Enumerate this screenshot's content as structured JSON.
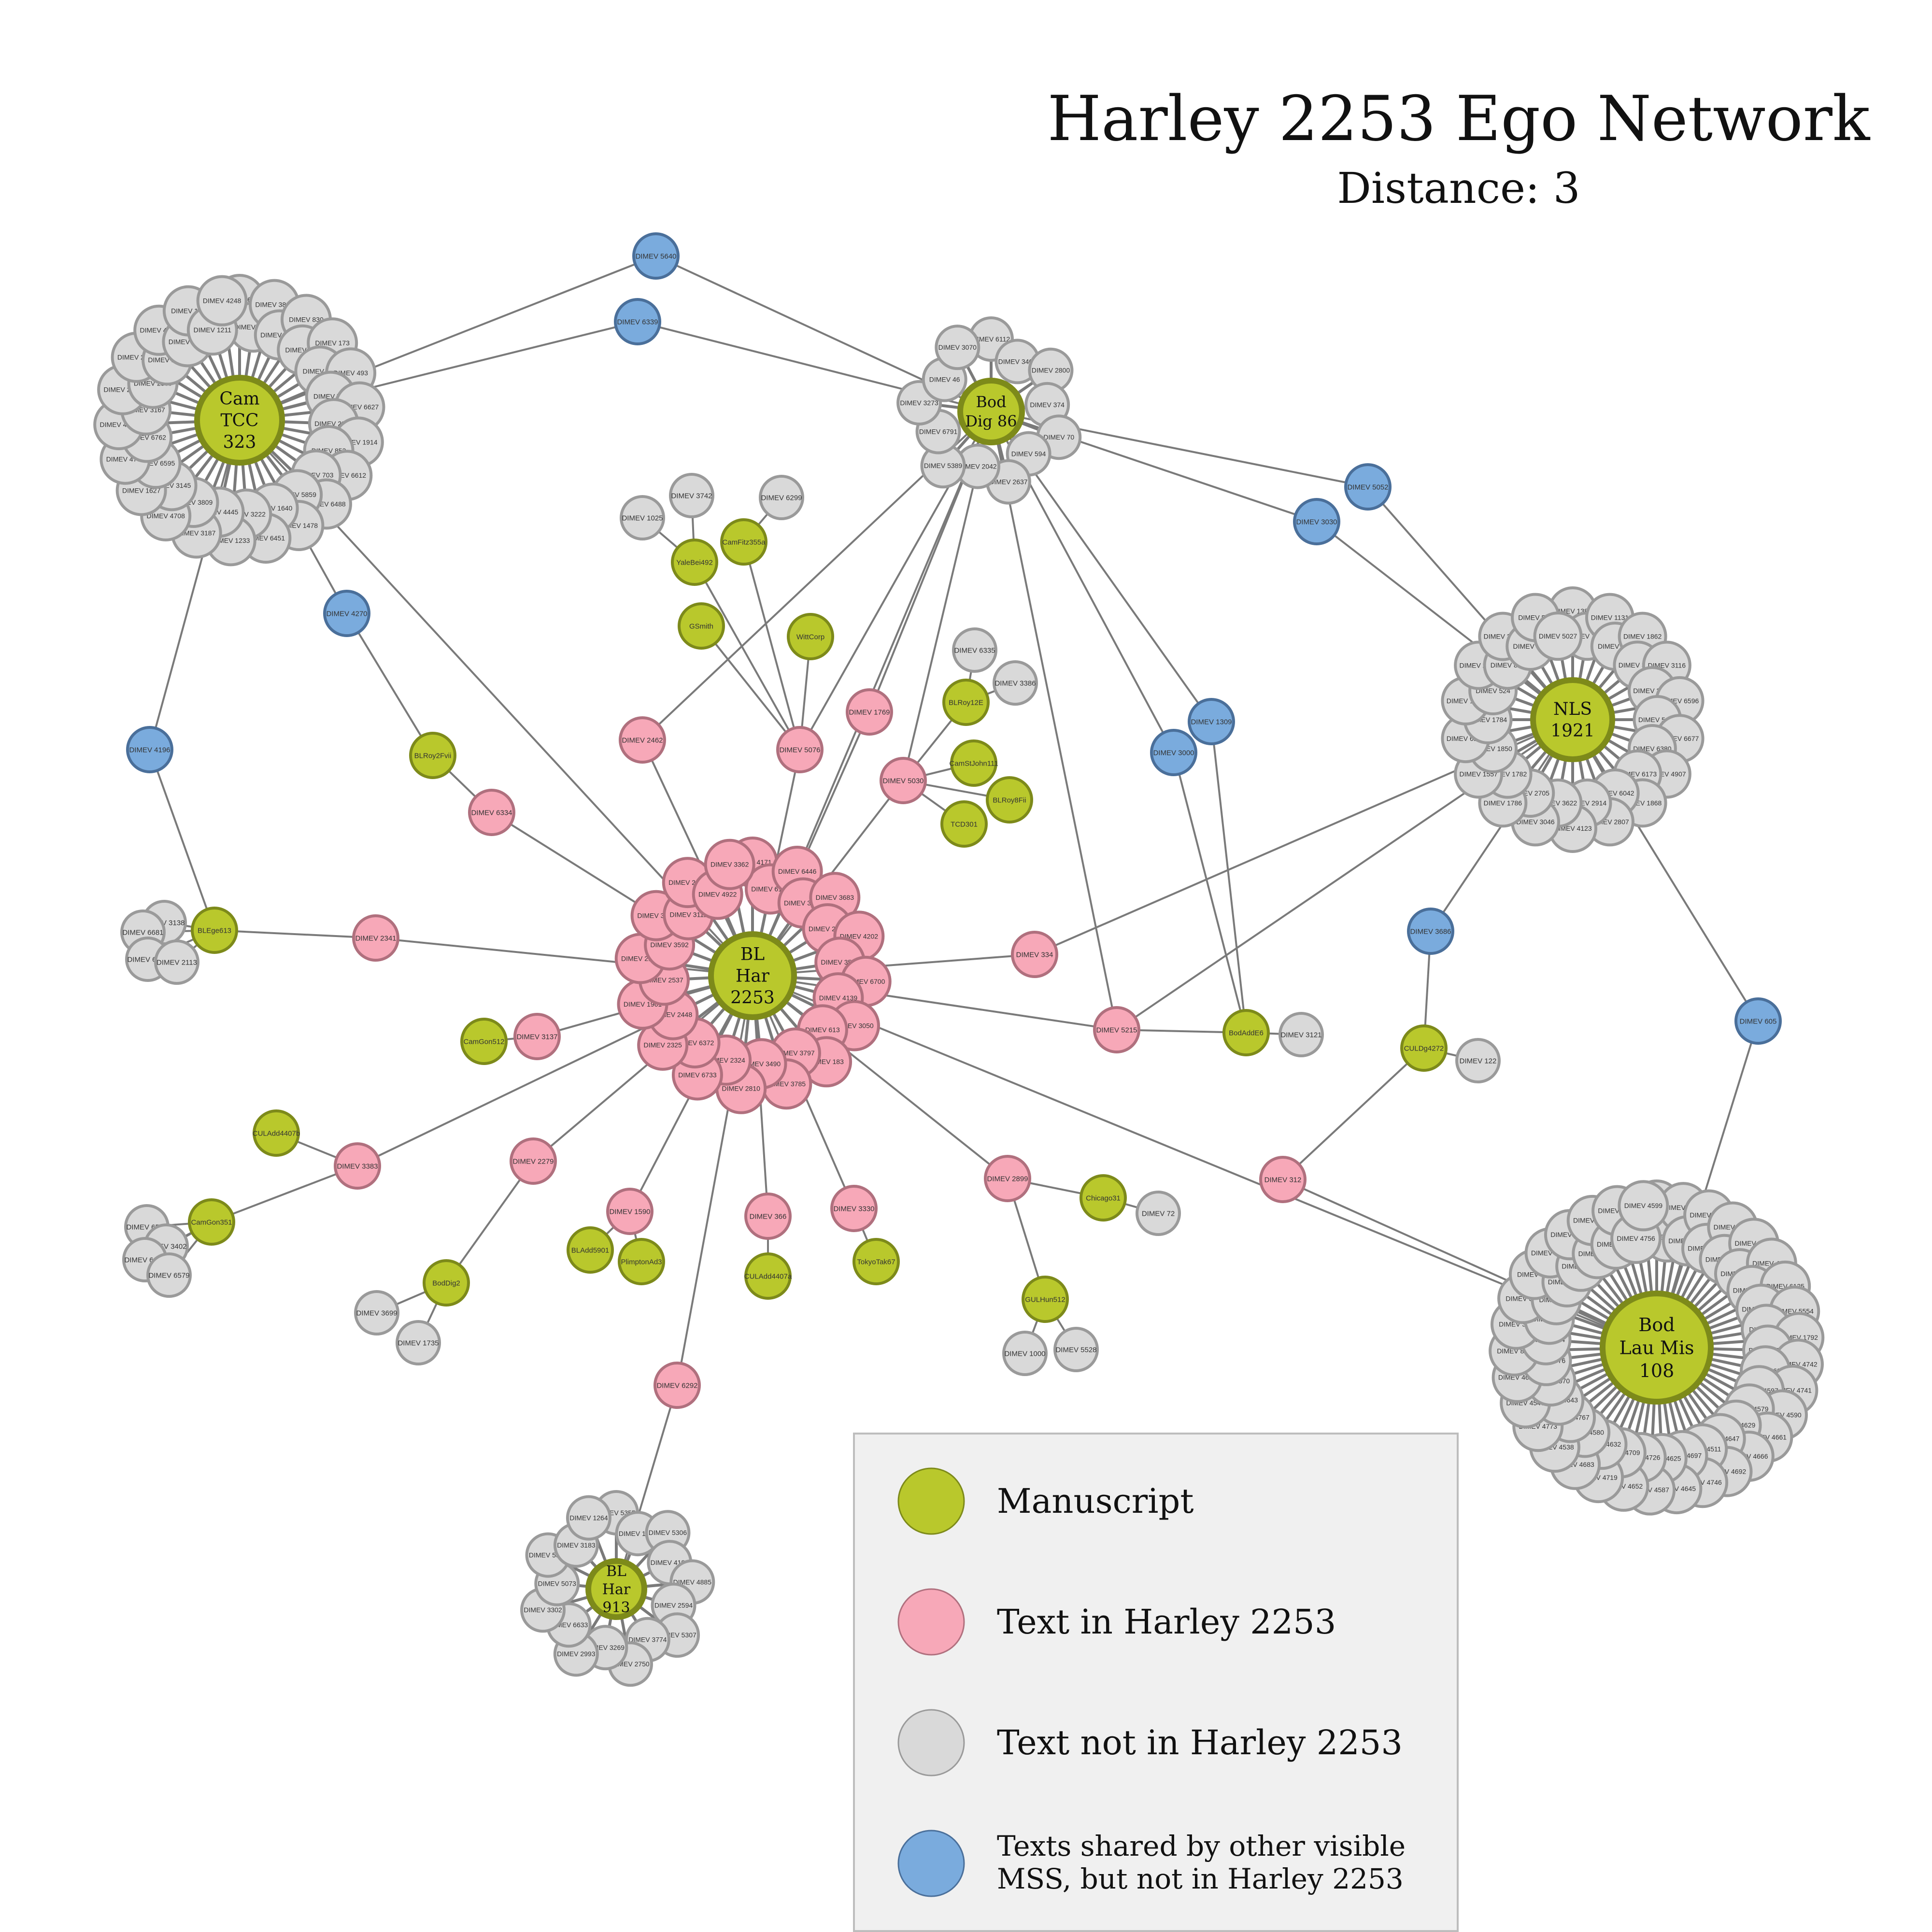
{
  "title": "Harley 2253 Ego Network",
  "subtitle": "Distance: 3",
  "colors": {
    "manuscript": "#b9c82c",
    "manuscript_stroke": "#7d8a1a",
    "in_harley": "#f7a8b8",
    "in_harley_stroke": "#b0707e",
    "not_in_harley": "#d9d9d9",
    "not_in_harley_stroke": "#9a9a9a",
    "shared": "#7aabdd",
    "shared_stroke": "#4a6f9a",
    "edge": "#7a7a7a"
  },
  "legend": {
    "items": [
      {
        "type": "manuscript",
        "label": "Manuscript"
      },
      {
        "type": "in_harley",
        "label": "Text in Harley 2253"
      },
      {
        "type": "not_in_harley",
        "label": "Text not in Harley 2253"
      },
      {
        "type": "shared",
        "label": "Texts shared by other visible",
        "label2": "MSS, but not in Harley 2253"
      }
    ]
  },
  "hubs": [
    {
      "id": "har2253",
      "label": [
        "BL",
        "Har",
        "2253"
      ],
      "ring_type": "in_harley",
      "ring": [
        "DIMEV 4171",
        "DIMEV 6195",
        "DIMEV 6446",
        "DIMEV 3227",
        "DIMEV 3683",
        "DIMEV 2025",
        "DIMEV 4202",
        "DIMEV 3550",
        "DIMEV 6700",
        "DIMEV 4139",
        "DIMEV 3050",
        "DIMEV 613",
        "DIMEV 183",
        "DIMEV 3797",
        "DIMEV 3785",
        "DIMEV 3490",
        "DIMEV 2810",
        "DIMEV 2324",
        "DIMEV 6733",
        "DIMEV 6372",
        "DIMEV 2325",
        "DIMEV 2448",
        "DIMEV 1961",
        "DIMEV 2537",
        "DIMEV 2199",
        "DIMEV 3592",
        "DIMEV 3115",
        "DIMEV 3111",
        "DIMEV 2842",
        "DIMEV 4922",
        "DIMEV 3362"
      ]
    },
    {
      "id": "camtcc",
      "label": [
        "Cam",
        "TCC",
        "323"
      ],
      "ring_type": "not_in_harley",
      "ring": [
        "DIMEV 6686",
        "DIMEV 3023",
        "DIMEV 3808",
        "DIMEV 4359",
        "DIMEV 830",
        "DIMEV 198",
        "DIMEV 173",
        "DIMEV 784",
        "DIMEV 493",
        "DIMEV 714",
        "DIMEV 6627",
        "DIMEV 2315",
        "DIMEV 1914",
        "DIMEV 852",
        "DIMEV 6612",
        "DIMEV 703",
        "DIMEV 6488",
        "DIMEV 5859",
        "DIMEV 1478",
        "DIMEV 1640",
        "DIMEV 6451",
        "DIMEV 3222",
        "DIMEV 1233",
        "DIMEV 4445",
        "DIMEV 3187",
        "DIMEV 3809",
        "DIMEV 4708",
        "DIMEV 3145",
        "DIMEV 1627",
        "DIMEV 6595",
        "DIMEV 4786",
        "DIMEV 6762",
        "DIMEV 4705",
        "DIMEV 3167",
        "DIMEV 2722",
        "DIMEV 2389",
        "DIMEV 2766",
        "DIMEV 1516",
        "DIMEV 4103",
        "DIMEV 4219",
        "DIMEV 189",
        "DIMEV 1211",
        "DIMEV 4248"
      ]
    },
    {
      "id": "boddig86",
      "label": [
        "Bod",
        "Dig 86"
      ],
      "ring_type": "not_in_harley",
      "ring": [
        "DIMEV 6112",
        "DIMEV 3405",
        "DIMEV 2800",
        "DIMEV 374",
        "DIMEV 70",
        "DIMEV 594",
        "DIMEV 2637",
        "DIMEV 2042",
        "DIMEV 5389",
        "DIMEV 6791",
        "DIMEV 3273",
        "DIMEV 46",
        "DIMEV 3070"
      ]
    },
    {
      "id": "nls1921",
      "label": [
        "NLS",
        "1921"
      ],
      "ring_type": "not_in_harley",
      "ring": [
        "DIMEV 1381",
        "DIMEV 1938",
        "DIMEV 1131",
        "DIMEV 870",
        "DIMEV 1862",
        "DIMEV 3231",
        "DIMEV 3116",
        "DIMEV 3201",
        "DIMEV 6596",
        "DIMEV 5460",
        "DIMEV 6677",
        "DIMEV 6380",
        "DIMEV 4907",
        "DIMEV 6173",
        "DIMEV 1868",
        "DIMEV 6042",
        "DIMEV 2807",
        "DIMEV 2914",
        "DIMEV 4123",
        "DIMEV 3622",
        "DIMEV 3046",
        "DIMEV 2705",
        "DIMEV 1786",
        "DIMEV 1782",
        "DIMEV 1557",
        "DIMEV 1850",
        "DIMEV 6172",
        "DIMEV 1784",
        "DIMEV 1789",
        "DIMEV 524",
        "DIMEV 2254",
        "DIMEV 854",
        "DIMEV 3362",
        "DIMEV 401",
        "DIMEV 526",
        "DIMEV 5027"
      ]
    },
    {
      "id": "bodlau",
      "label": [
        "Bod",
        "Lau Mis",
        "108"
      ],
      "ring_type": "not_in_harley",
      "ring": [
        "DIMEV 4768",
        "DIMEV 4752",
        "DIMEV 5451",
        "DIMEV 4732",
        "DIMEV 4731",
        "DIMEV 6687",
        "DIMEV 4926",
        "DIMEV 4814",
        "DIMEV 5337",
        "DIMEV 4772",
        "DIMEV 4923",
        "DIMEV 4737",
        "DIMEV 6125",
        "DIMEV 1833",
        "DIMEV 5554",
        "DIMEV 392",
        "DIMEV 1792",
        "DIMEV 4746",
        "DIMEV 4742",
        "DIMEV 4633",
        "DIMEV 4741",
        "DIMEV 4597",
        "DIMEV 4590",
        "DIMEV 4579",
        "DIMEV 4661",
        "DIMEV 4629",
        "DIMEV 4666",
        "DIMEV 4647",
        "DIMEV 4692",
        "DIMEV 4511",
        "DIMEV 4746",
        "DIMEV 4697",
        "DIMEV 4645",
        "DIMEV 4625",
        "DIMEV 4587",
        "DIMEV 4726",
        "DIMEV 4652",
        "DIMEV 4709",
        "DIMEV 4719",
        "DIMEV 4632",
        "DIMEV 4683",
        "DIMEV 4580",
        "DIMEV 4538",
        "DIMEV 4767",
        "DIMEV 4773",
        "DIMEV 4643",
        "DIMEV 4547",
        "DIMEV 4570",
        "DIMEV 4603",
        "DIMEV 4576",
        "DIMEV 807",
        "DIMEV 4184",
        "DIMEV 363",
        "DIMEV 335",
        "DIMEV 333",
        "DIMEV 779",
        "DIMEV 835",
        "DIMEV 4660",
        "DIMEV 4615",
        "DIMEV 4594",
        "DIMEV 4584",
        "DIMEV 4572",
        "DIMEV 4567",
        "DIMEV 4651",
        "DIMEV 4595",
        "DIMEV 4756",
        "DIMEV 4599"
      ]
    },
    {
      "id": "blhar913",
      "label": [
        "BL",
        "Har",
        "913"
      ],
      "ring_type": "not_in_harley",
      "ring": [
        "DIMEV 5355",
        "DIMEV 1750",
        "DIMEV 5306",
        "DIMEV 4183",
        "DIMEV 4885",
        "DIMEV 2594",
        "DIMEV 5307",
        "DIMEV 3774",
        "DIMEV 2750",
        "DIMEV 3269",
        "DIMEV 2993",
        "DIMEV 6633",
        "DIMEV 3302",
        "DIMEV 5073",
        "DIMEV 5308",
        "DIMEV 3183",
        "DIMEV 1264"
      ]
    }
  ],
  "nodes": [
    {
      "id": "s5640",
      "label": "DIMEV 5640",
      "type": "shared"
    },
    {
      "id": "s6339",
      "label": "DIMEV 6339",
      "type": "shared"
    },
    {
      "id": "s4270",
      "label": "DIMEV 4270",
      "type": "shared"
    },
    {
      "id": "s4196",
      "label": "DIMEV 4196",
      "type": "shared"
    },
    {
      "id": "s5052",
      "label": "DIMEV 5052",
      "type": "shared"
    },
    {
      "id": "s3030",
      "label": "DIMEV 3030",
      "type": "shared"
    },
    {
      "id": "s1309",
      "label": "DIMEV 1309",
      "type": "shared"
    },
    {
      "id": "s3000",
      "label": "DIMEV 3000",
      "type": "shared"
    },
    {
      "id": "s3686",
      "label": "DIMEV 3686",
      "type": "shared"
    },
    {
      "id": "s605",
      "label": "DIMEV 605",
      "type": "shared"
    },
    {
      "id": "t2462",
      "label": "DIMEV 2462",
      "type": "in_harley"
    },
    {
      "id": "t5076",
      "label": "DIMEV 5076",
      "type": "in_harley"
    },
    {
      "id": "t1769",
      "label": "DIMEV 1769",
      "type": "in_harley"
    },
    {
      "id": "t5030",
      "label": "DIMEV 5030",
      "type": "in_harley"
    },
    {
      "id": "t6334",
      "label": "DIMEV 6334",
      "type": "in_harley"
    },
    {
      "id": "t2341",
      "label": "DIMEV 2341",
      "type": "in_harley"
    },
    {
      "id": "t3137",
      "label": "DIMEV 3137",
      "type": "in_harley"
    },
    {
      "id": "t334",
      "label": "DIMEV 334",
      "type": "in_harley"
    },
    {
      "id": "t5215",
      "label": "DIMEV 5215",
      "type": "in_harley"
    },
    {
      "id": "t3383",
      "label": "DIMEV 3383",
      "type": "in_harley"
    },
    {
      "id": "t2279",
      "label": "DIMEV 2279",
      "type": "in_harley"
    },
    {
      "id": "t1590",
      "label": "DIMEV 1590",
      "type": "in_harley"
    },
    {
      "id": "t366",
      "label": "DIMEV 366",
      "type": "in_harley"
    },
    {
      "id": "t3330",
      "label": "DIMEV 3330",
      "type": "in_harley"
    },
    {
      "id": "t2899",
      "label": "DIMEV 2899",
      "type": "in_harley"
    },
    {
      "id": "t312",
      "label": "DIMEV 312",
      "type": "in_harley"
    },
    {
      "id": "t6292",
      "label": "DIMEV 6292",
      "type": "in_harley"
    },
    {
      "id": "mYale",
      "label": "YaleBei492",
      "type": "manuscript"
    },
    {
      "id": "mCamFitz",
      "label": "CamFitz355a",
      "type": "manuscript"
    },
    {
      "id": "mGSmith",
      "label": "GSmith",
      "type": "manuscript"
    },
    {
      "id": "mWitt",
      "label": "WittCorp",
      "type": "manuscript"
    },
    {
      "id": "mBLRoy12E",
      "label": "BLRoy12E",
      "type": "manuscript"
    },
    {
      "id": "mCamStJohn",
      "label": "CamStJohn111",
      "type": "manuscript"
    },
    {
      "id": "mBLRoy8Fii",
      "label": "BLRoy8Fii",
      "type": "manuscript"
    },
    {
      "id": "mTCD301",
      "label": "TCD301",
      "type": "manuscript"
    },
    {
      "id": "mBLRoy2Fvii",
      "label": "BLRoy2Fvii",
      "type": "manuscript"
    },
    {
      "id": "mBLEge",
      "label": "BLEge613",
      "type": "manuscript"
    },
    {
      "id": "mCamGon512",
      "label": "CamGon512",
      "type": "manuscript"
    },
    {
      "id": "mCULAdd4407b",
      "label": "CULAdd4407b",
      "type": "manuscript"
    },
    {
      "id": "mCamGon351",
      "label": "CamGon351",
      "type": "manuscript"
    },
    {
      "id": "mBodDig2",
      "label": "BodDig2",
      "type": "manuscript"
    },
    {
      "id": "mBLAdd",
      "label": "BLAdd5901",
      "type": "manuscript"
    },
    {
      "id": "mPlimpton",
      "label": "PlimptonAd3",
      "type": "manuscript"
    },
    {
      "id": "mCULAdd4407a",
      "label": "CULAdd4407a",
      "type": "manuscript"
    },
    {
      "id": "mTokyo",
      "label": "TokyoTak67",
      "type": "manuscript"
    },
    {
      "id": "mChicago",
      "label": "Chicago31",
      "type": "manuscript"
    },
    {
      "id": "mGULHun",
      "label": "GULHun512",
      "type": "manuscript"
    },
    {
      "id": "mBodAddE6",
      "label": "BodAddE6",
      "type": "manuscript"
    },
    {
      "id": "mCULDg",
      "label": "CULDg4272",
      "type": "manuscript"
    },
    {
      "id": "g3742",
      "label": "DIMEV 3742",
      "type": "not_in_harley"
    },
    {
      "id": "g1025",
      "label": "DIMEV 1025",
      "type": "not_in_harley"
    },
    {
      "id": "g6299",
      "label": "DIMEV 6299",
      "type": "not_in_harley"
    },
    {
      "id": "g6335",
      "label": "DIMEV 6335",
      "type": "not_in_harley"
    },
    {
      "id": "g3386",
      "label": "DIMEV 3386",
      "type": "not_in_harley"
    },
    {
      "id": "g3138",
      "label": "DIMEV 3138",
      "type": "not_in_harley"
    },
    {
      "id": "g6681",
      "label": "DIMEV 6681",
      "type": "not_in_harley"
    },
    {
      "id": "g6682",
      "label": "DIMEV 6682",
      "type": "not_in_harley"
    },
    {
      "id": "g2113",
      "label": "DIMEV 2113",
      "type": "not_in_harley"
    },
    {
      "id": "g6580",
      "label": "DIMEV 6580",
      "type": "not_in_harley"
    },
    {
      "id": "g3402",
      "label": "DIMEV 3402",
      "type": "not_in_harley"
    },
    {
      "id": "g6408",
      "label": "DIMEV 6408",
      "type": "not_in_harley"
    },
    {
      "id": "g6579",
      "label": "DIMEV 6579",
      "type": "not_in_harley"
    },
    {
      "id": "g3699",
      "label": "DIMEV 3699",
      "type": "not_in_harley"
    },
    {
      "id": "g1735",
      "label": "DIMEV 1735",
      "type": "not_in_harley"
    },
    {
      "id": "g72",
      "label": "DIMEV 72",
      "type": "not_in_harley"
    },
    {
      "id": "g1000",
      "label": "DIMEV 1000",
      "type": "not_in_harley"
    },
    {
      "id": "g5528",
      "label": "DIMEV 5528",
      "type": "not_in_harley"
    },
    {
      "id": "g3121",
      "label": "DIMEV 3121",
      "type": "not_in_harley"
    },
    {
      "id": "g122",
      "label": "DIMEV 122",
      "type": "not_in_harley"
    }
  ],
  "edges": [
    [
      "camtcc",
      "s5640"
    ],
    [
      "camtcc",
      "s6339"
    ],
    [
      "boddig86",
      "s5640"
    ],
    [
      "boddig86",
      "s6339"
    ],
    [
      "camtcc",
      "s4270"
    ],
    [
      "s4270",
      "mBLRoy2Fvii"
    ],
    [
      "camtcc",
      "s4196"
    ],
    [
      "s4196",
      "mBLEge"
    ],
    [
      "camtcc",
      "har2253"
    ],
    [
      "boddig86",
      "t2462"
    ],
    [
      "boddig86",
      "t5076"
    ],
    [
      "boddig86",
      "t1769"
    ],
    [
      "boddig86",
      "t5030"
    ],
    [
      "boddig86",
      "s1309"
    ],
    [
      "boddig86",
      "s3000"
    ],
    [
      "boddig86",
      "t5215"
    ],
    [
      "boddig86",
      "s5052"
    ],
    [
      "boddig86",
      "har2253"
    ],
    [
      "s5052",
      "nls1921"
    ],
    [
      "s3030",
      "nls1921"
    ],
    [
      "boddig86",
      "s3030"
    ],
    [
      "s1309",
      "mBodAddE6"
    ],
    [
      "s3000",
      "mBodAddE6"
    ],
    [
      "mBodAddE6",
      "g3121"
    ],
    [
      "t2462",
      "har2253"
    ],
    [
      "t5076",
      "har2253"
    ],
    [
      "t1769",
      "har2253"
    ],
    [
      "t5030",
      "har2253"
    ],
    [
      "t5076",
      "mYale"
    ],
    [
      "t5076",
      "mCamFitz"
    ],
    [
      "t5076",
      "mGSmith"
    ],
    [
      "t5076",
      "mWitt"
    ],
    [
      "mYale",
      "g3742"
    ],
    [
      "mYale",
      "g1025"
    ],
    [
      "mCamFitz",
      "g6299"
    ],
    [
      "t5030",
      "mBLRoy12E"
    ],
    [
      "t5030",
      "mCamStJohn"
    ],
    [
      "t5030",
      "mBLRoy8Fii"
    ],
    [
      "t5030",
      "mTCD301"
    ],
    [
      "mBLRoy12E",
      "g6335"
    ],
    [
      "mBLRoy12E",
      "g3386"
    ],
    [
      "mBLRoy2Fvii",
      "t6334"
    ],
    [
      "t6334",
      "har2253"
    ],
    [
      "mBLEge",
      "t2341"
    ],
    [
      "t2341",
      "har2253"
    ],
    [
      "mBLEge",
      "g3138"
    ],
    [
      "mBLEge",
      "g6681"
    ],
    [
      "mBLEge",
      "g6682"
    ],
    [
      "mBLEge",
      "g2113"
    ],
    [
      "mCamGon512",
      "t3137"
    ],
    [
      "t3137",
      "har2253"
    ],
    [
      "har2253",
      "t334"
    ],
    [
      "t334",
      "nls1921"
    ],
    [
      "har2253",
      "t5215"
    ],
    [
      "t5215",
      "nls1921"
    ],
    [
      "t5215",
      "mBodAddE6"
    ],
    [
      "har2253",
      "t3383"
    ],
    [
      "t3383",
      "mCULAdd4407b"
    ],
    [
      "t3383",
      "mCamGon351"
    ],
    [
      "mCamGon351",
      "g6580"
    ],
    [
      "mCamGon351",
      "g3402"
    ],
    [
      "mCamGon351",
      "g6408"
    ],
    [
      "mCamGon351",
      "g6579"
    ],
    [
      "har2253",
      "t2279"
    ],
    [
      "t2279",
      "mBodDig2"
    ],
    [
      "mBodDig2",
      "g3699"
    ],
    [
      "mBodDig2",
      "g1735"
    ],
    [
      "har2253",
      "t1590"
    ],
    [
      "t1590",
      "mBLAdd"
    ],
    [
      "t1590",
      "mPlimpton"
    ],
    [
      "har2253",
      "t366"
    ],
    [
      "t366",
      "mCULAdd4407a"
    ],
    [
      "har2253",
      "t3330"
    ],
    [
      "t3330",
      "mTokyo"
    ],
    [
      "har2253",
      "t2899"
    ],
    [
      "t2899",
      "mChicago"
    ],
    [
      "mChicago",
      "g72"
    ],
    [
      "t2899",
      "mGULHun"
    ],
    [
      "mGULHun",
      "g1000"
    ],
    [
      "mGULHun",
      "g5528"
    ],
    [
      "har2253",
      "bodlau"
    ],
    [
      "t312",
      "bodlau"
    ],
    [
      "t312",
      "mCULDg"
    ],
    [
      "mCULDg",
      "s3686"
    ],
    [
      "mCULDg",
      "g122"
    ],
    [
      "s3686",
      "nls1921"
    ],
    [
      "nls1921",
      "s605"
    ],
    [
      "s605",
      "bodlau"
    ],
    [
      "har2253",
      "t6292"
    ],
    [
      "t6292",
      "blhar913"
    ]
  ]
}
